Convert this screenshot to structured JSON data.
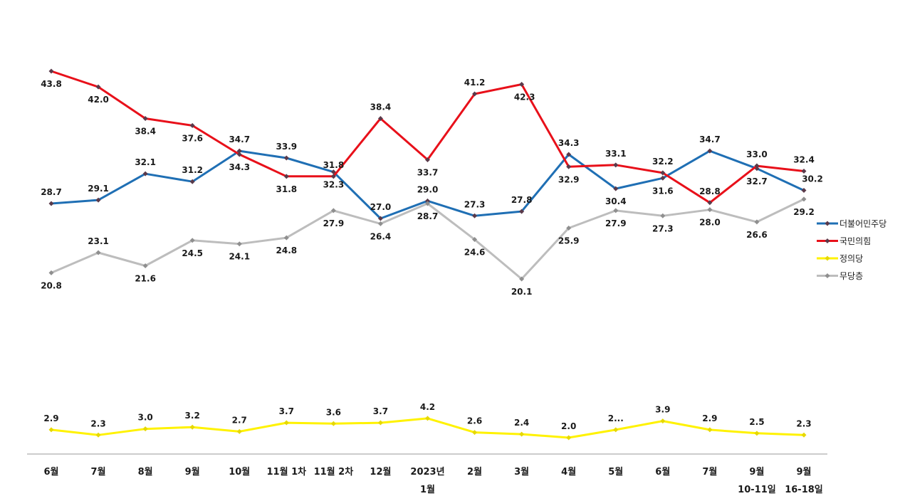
{
  "chart_data": {
    "type": "line",
    "categories": [
      [
        "6월"
      ],
      [
        "7월"
      ],
      [
        "8월"
      ],
      [
        "9월"
      ],
      [
        "10월"
      ],
      [
        "11월 1차"
      ],
      [
        "11월 2차"
      ],
      [
        "12월"
      ],
      [
        "2023년",
        "1월"
      ],
      [
        "2월"
      ],
      [
        "3월"
      ],
      [
        "4월"
      ],
      [
        "5월"
      ],
      [
        "6월"
      ],
      [
        "7월"
      ],
      [
        "9월",
        "10-11일"
      ],
      [
        "9월",
        "16-18일"
      ]
    ],
    "series": [
      {
        "name": "더불어민주당",
        "color": "#1F6FB4",
        "values": [
          28.7,
          29.1,
          32.1,
          31.2,
          34.7,
          33.9,
          32.3,
          27.0,
          29.0,
          27.3,
          27.8,
          34.3,
          30.4,
          31.6,
          34.7,
          32.7,
          30.2
        ]
      },
      {
        "name": "국민의힘",
        "color": "#E8101A",
        "values": [
          43.8,
          42.0,
          38.4,
          37.6,
          34.3,
          31.8,
          31.8,
          38.4,
          33.7,
          41.2,
          42.3,
          32.9,
          33.1,
          32.2,
          28.8,
          33.0,
          32.4
        ]
      },
      {
        "name": "정의당",
        "color": "#FFF200",
        "values": [
          2.9,
          2.3,
          3.0,
          3.2,
          2.7,
          3.7,
          3.6,
          3.7,
          4.2,
          2.6,
          2.4,
          2.0,
          2.9,
          3.9,
          2.9,
          2.5,
          2.3
        ]
      },
      {
        "name": "무당층",
        "color": "#BDBDBD",
        "values": [
          20.8,
          23.1,
          21.6,
          24.5,
          24.1,
          24.8,
          27.9,
          26.4,
          28.7,
          24.6,
          20.1,
          25.9,
          27.9,
          27.3,
          28.0,
          26.6,
          29.2
        ]
      }
    ],
    "data_labels": [
      [
        "28.7",
        "29.1",
        "32.1",
        "31.2",
        "34.7",
        "33.9",
        "32.3",
        "27.0",
        "29.0",
        "27.3",
        "27.8",
        "34.3",
        "30.4",
        "31.6",
        "34.7",
        "32.7",
        "30.2"
      ],
      [
        "43.8",
        "42.0",
        "38.4",
        "37.6",
        "34.3",
        "31.8",
        "31.8",
        "38.4",
        "33.7",
        "41.2",
        "42.3",
        "32.9",
        "33.1",
        "32.2",
        "28.8",
        "33.0",
        "32.4"
      ],
      [
        "2.9",
        "2.3",
        "3.0",
        "3.2",
        "2.7",
        "3.7",
        "3.6",
        "3.7",
        "4.2",
        "2.6",
        "2.4",
        "2.0",
        "2...",
        "3.9",
        "2.9",
        "2.5",
        "2.3"
      ],
      [
        "20.8",
        "23.1",
        "21.6",
        "24.5",
        "24.1",
        "24.8",
        "27.9",
        "26.4",
        "28.7",
        "24.6",
        "20.1",
        "25.9",
        "27.9",
        "27.3",
        "28.0",
        "26.6",
        "29.2"
      ]
    ],
    "title": "",
    "xlabel": "",
    "ylabel": "",
    "ylim": [
      0,
      46
    ],
    "grid": false,
    "y_axis_visible": false,
    "legend_position": "right"
  }
}
